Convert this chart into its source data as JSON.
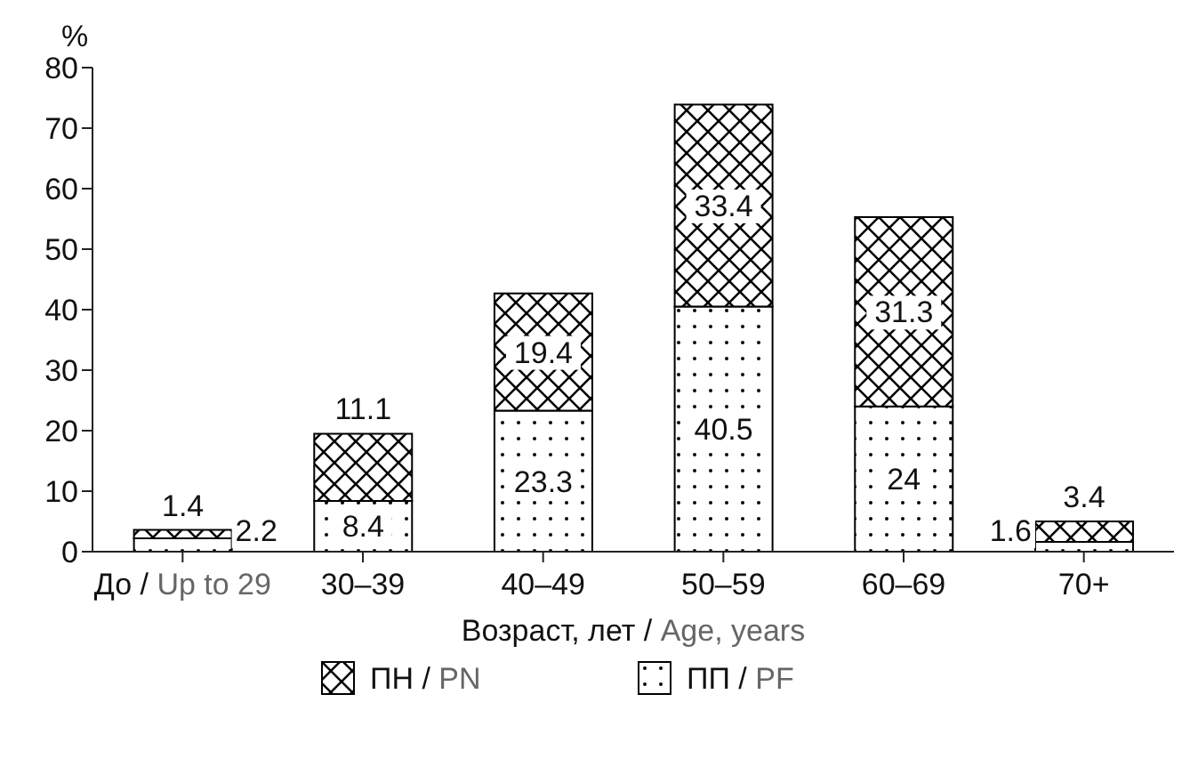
{
  "chart_data": {
    "type": "bar",
    "stacked": true,
    "ylabel": "%",
    "xlabel": "Возраст, лет / Age, years",
    "categories": [
      "До / Up to 29",
      "30–39",
      "40–49",
      "50–59",
      "60–69",
      "70+"
    ],
    "series": [
      {
        "name": "ПП / PF",
        "color": "#000000",
        "values": [
          2.2,
          8.4,
          23.3,
          40.5,
          24,
          1.6
        ]
      },
      {
        "name": "ПН / PN",
        "color": "#000000",
        "values": [
          1.4,
          11.1,
          19.4,
          33.4,
          31.3,
          3.4
        ]
      }
    ],
    "ylim": [
      0,
      80
    ],
    "yticks": [
      0,
      10,
      20,
      30,
      40,
      50,
      60,
      70,
      80
    ],
    "grid": false,
    "legend": "bottom",
    "data_labels": true
  }
}
